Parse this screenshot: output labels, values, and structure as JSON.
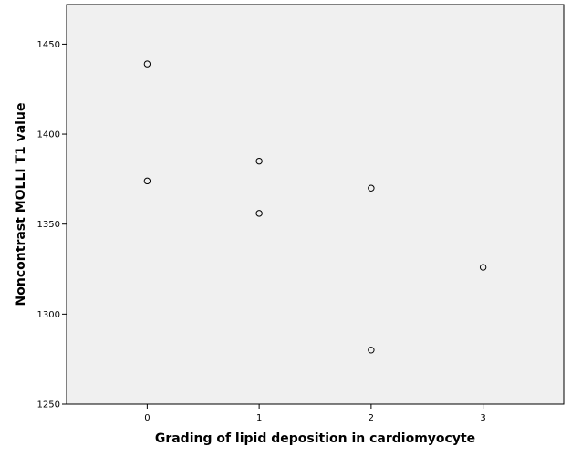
{
  "chart_data": {
    "type": "scatter",
    "title": "",
    "xlabel": "Grading of lipid deposition in cardiomyocyte",
    "ylabel": "Noncontrast MOLLI T1 value",
    "xlim": [
      -0.72,
      3.72
    ],
    "ylim": [
      1250,
      1472
    ],
    "x_ticks": [
      0,
      1,
      2,
      3
    ],
    "y_ticks": [
      1250,
      1300,
      1350,
      1400,
      1450
    ],
    "grid": false,
    "legend": "none",
    "plot_background": "#f0f0f0",
    "marker": "hollow-circle",
    "points": [
      {
        "x": 0,
        "y": 1439
      },
      {
        "x": 0,
        "y": 1374
      },
      {
        "x": 1,
        "y": 1385
      },
      {
        "x": 1,
        "y": 1356
      },
      {
        "x": 2,
        "y": 1370
      },
      {
        "x": 2,
        "y": 1280
      },
      {
        "x": 3,
        "y": 1326
      }
    ]
  }
}
